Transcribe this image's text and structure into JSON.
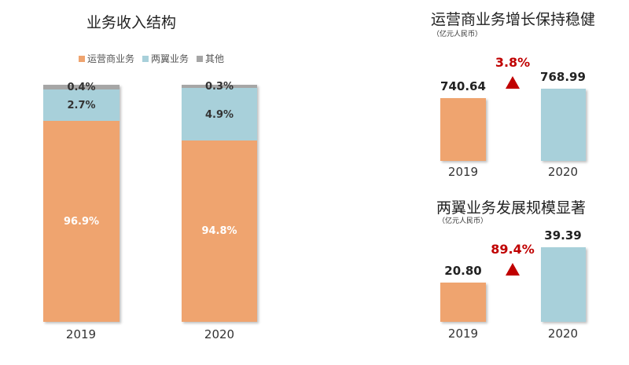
{
  "colors": {
    "operator": "#EFA46F",
    "wings": "#A8D0DA",
    "other": "#A6A6A6",
    "up": "#C00000"
  },
  "chart_data": [
    {
      "type": "bar",
      "stacked": true,
      "title": "业务收入结构",
      "categories": [
        "2019",
        "2020"
      ],
      "legend_position": "top",
      "series": [
        {
          "name": "运营商业务",
          "values": [
            96.9,
            94.8
          ],
          "labels": [
            "96.9%",
            "94.8%"
          ]
        },
        {
          "name": "两翼业务",
          "values": [
            2.7,
            4.9
          ],
          "labels": [
            "2.7%",
            "4.9%"
          ]
        },
        {
          "name": "其他",
          "values": [
            0.4,
            0.3
          ],
          "labels": [
            "0.4%",
            "0.3%"
          ]
        }
      ]
    },
    {
      "type": "bar",
      "title": "运营商业务增长保持稳健",
      "subtitle": "（亿元人民币）",
      "categories": [
        "2019",
        "2020"
      ],
      "values": [
        740.64,
        768.99
      ],
      "labels": [
        "740.64",
        "768.99"
      ],
      "growth": "3.8%",
      "icon": "up-triangle-icon"
    },
    {
      "type": "bar",
      "title": "两翼业务发展规模显著",
      "subtitle": "（亿元人民币）",
      "categories": [
        "2019",
        "2020"
      ],
      "values": [
        20.8,
        39.39
      ],
      "labels": [
        "20.80",
        "39.39"
      ],
      "growth": "89.4%",
      "icon": "up-triangle-icon"
    }
  ]
}
